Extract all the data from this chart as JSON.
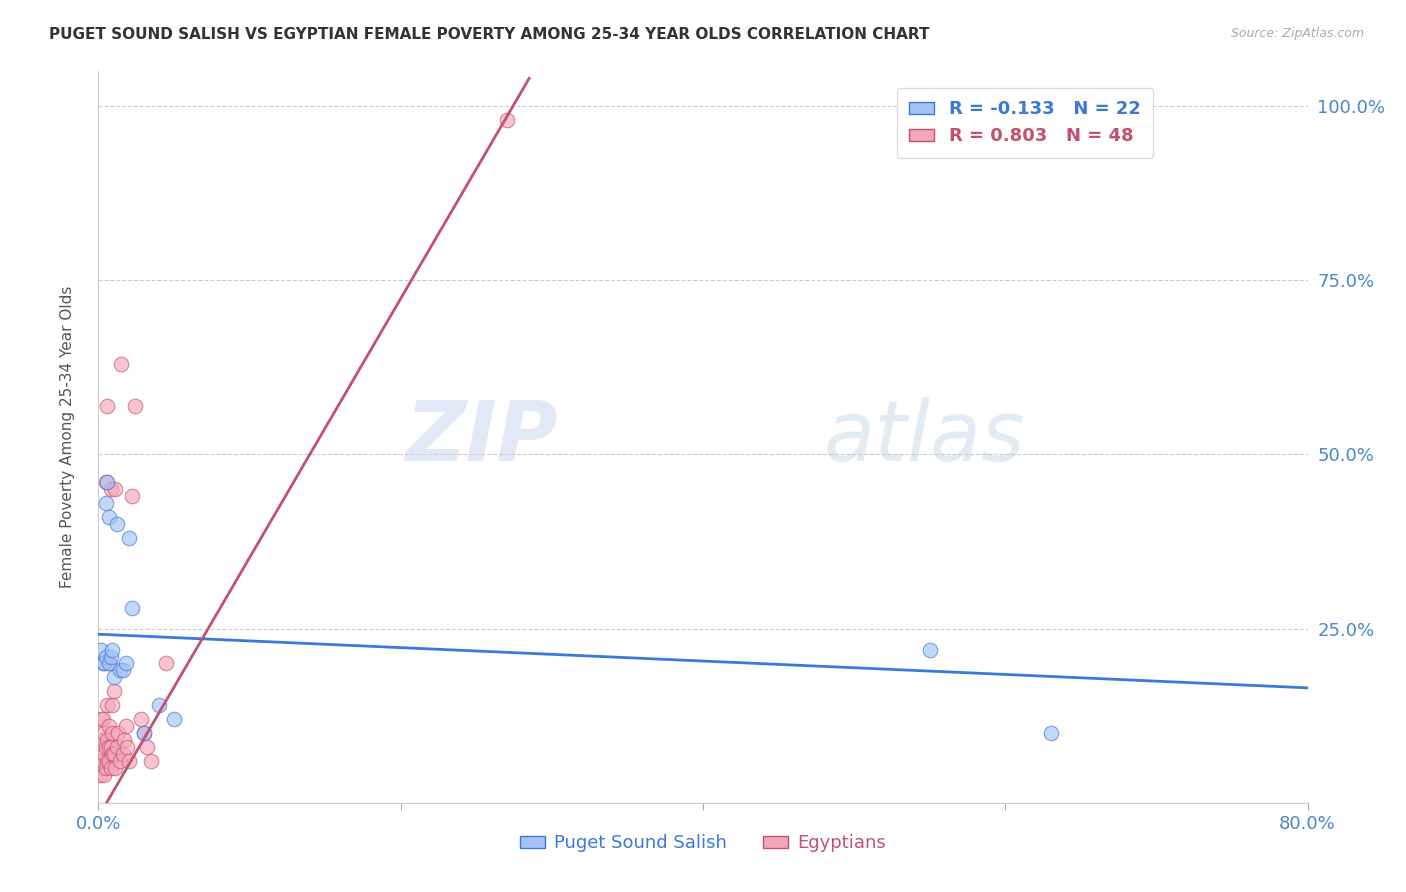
{
  "title": "PUGET SOUND SALISH VS EGYPTIAN FEMALE POVERTY AMONG 25-34 YEAR OLDS CORRELATION CHART",
  "source": "Source: ZipAtlas.com",
  "ylabel": "Female Poverty Among 25-34 Year Olds",
  "xlim": [
    0,
    0.8
  ],
  "ylim": [
    0,
    1.05
  ],
  "xticks": [
    0.0,
    0.2,
    0.4,
    0.6,
    0.8
  ],
  "yticks": [
    0.0,
    0.25,
    0.5,
    0.75,
    1.0
  ],
  "xtick_labels": [
    "0.0%",
    "",
    "",
    "",
    "80.0%"
  ],
  "ytick_labels_right": [
    "",
    "25.0%",
    "50.0%",
    "75.0%",
    "100.0%"
  ],
  "blue_R": "-0.133",
  "blue_N": "22",
  "pink_R": "0.803",
  "pink_N": "48",
  "blue_color": "#a4c2f4",
  "pink_color": "#f4a7b9",
  "blue_line_color": "#3c78d8",
  "pink_line_color": "#c2506e",
  "background_color": "#ffffff",
  "blue_points_x": [
    0.002,
    0.003,
    0.004,
    0.005,
    0.005,
    0.006,
    0.007,
    0.007,
    0.008,
    0.009,
    0.01,
    0.012,
    0.014,
    0.016,
    0.018,
    0.02,
    0.022,
    0.03,
    0.04,
    0.05,
    0.55,
    0.63
  ],
  "blue_points_y": [
    0.22,
    0.2,
    0.2,
    0.21,
    0.43,
    0.46,
    0.41,
    0.2,
    0.21,
    0.22,
    0.18,
    0.4,
    0.19,
    0.19,
    0.2,
    0.38,
    0.28,
    0.1,
    0.14,
    0.12,
    0.22,
    0.1
  ],
  "pink_points_x": [
    0.001,
    0.001,
    0.002,
    0.002,
    0.003,
    0.003,
    0.003,
    0.004,
    0.004,
    0.004,
    0.005,
    0.005,
    0.005,
    0.006,
    0.006,
    0.006,
    0.006,
    0.007,
    0.007,
    0.007,
    0.007,
    0.008,
    0.008,
    0.008,
    0.009,
    0.009,
    0.009,
    0.01,
    0.01,
    0.011,
    0.011,
    0.012,
    0.013,
    0.014,
    0.015,
    0.016,
    0.017,
    0.018,
    0.019,
    0.02,
    0.022,
    0.024,
    0.028,
    0.03,
    0.032,
    0.035,
    0.045,
    0.27
  ],
  "pink_points_y": [
    0.04,
    0.08,
    0.05,
    0.12,
    0.06,
    0.09,
    0.12,
    0.04,
    0.07,
    0.1,
    0.05,
    0.08,
    0.46,
    0.06,
    0.09,
    0.14,
    0.57,
    0.06,
    0.08,
    0.11,
    0.2,
    0.05,
    0.08,
    0.45,
    0.07,
    0.1,
    0.14,
    0.07,
    0.16,
    0.05,
    0.45,
    0.08,
    0.1,
    0.06,
    0.63,
    0.07,
    0.09,
    0.11,
    0.08,
    0.06,
    0.44,
    0.57,
    0.12,
    0.1,
    0.08,
    0.06,
    0.2,
    0.98
  ],
  "blue_trend_x": [
    0.0,
    0.8
  ],
  "blue_trend_y0": 0.242,
  "blue_trend_y1": 0.165,
  "pink_trend_x0": 0.0,
  "pink_trend_x1": 0.285,
  "pink_trend_y0": -0.02,
  "pink_trend_y1": 1.04
}
